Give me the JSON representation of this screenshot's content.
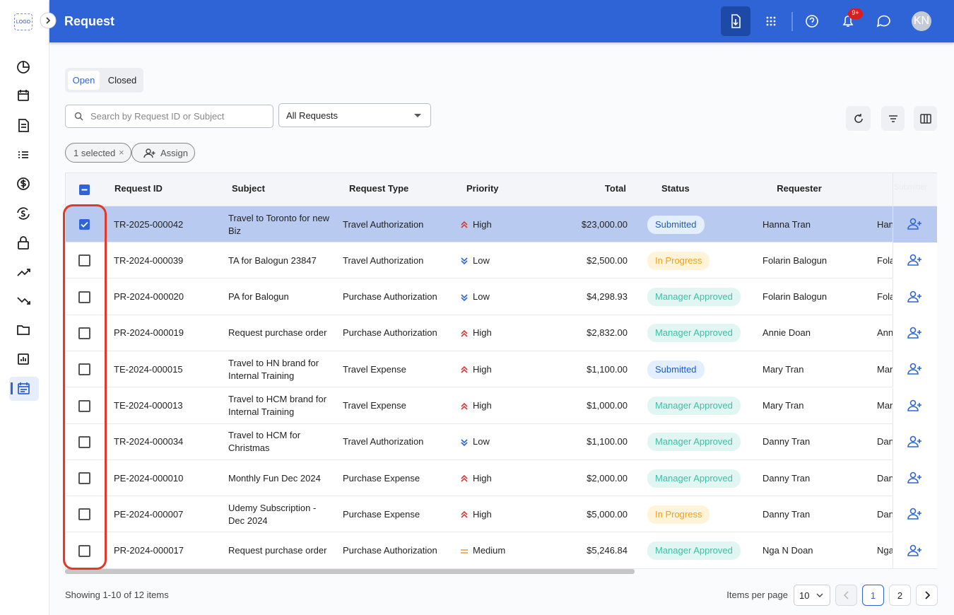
{
  "app": {
    "logo": "LOGO",
    "title": "Request",
    "notification_badge": "9+",
    "avatar": "KN"
  },
  "tabs": [
    "Open",
    "Closed"
  ],
  "filters": {
    "search_placeholder": "Search by Request ID or Subject",
    "dropdown": "All Requests"
  },
  "selection": {
    "selected": "1 selected",
    "assign": "Assign"
  },
  "table": {
    "columns": [
      "Request ID",
      "Subject",
      "Request Type",
      "Priority",
      "Total",
      "Status",
      "Requester",
      "Submitter"
    ],
    "checked": [
      true,
      false,
      false,
      false,
      false,
      false,
      false,
      false,
      false,
      false
    ],
    "rows": [
      [
        "TR-2025-000042",
        "Travel to Toronto for new Biz",
        "Travel Authorization",
        "High",
        "$23,000.00",
        "Submitted",
        "Hanna Tran",
        "Han"
      ],
      [
        "TR-2024-000039",
        "TA for Balogun 23847",
        "Travel Authorization",
        "Low",
        "$2,500.00",
        "In Progress",
        "Folarin Balogun",
        "Fola"
      ],
      [
        "PR-2024-000020",
        "PA for Balogun",
        "Purchase Authorization",
        "Low",
        "$4,298.93",
        "Manager Approved",
        "Folarin Balogun",
        "Fola"
      ],
      [
        "PR-2024-000019",
        "Request purchase order",
        "Purchase Authorization",
        "High",
        "$2,832.00",
        "Manager Approved",
        "Annie Doan",
        "Anni"
      ],
      [
        "TE-2024-000015",
        "Travel to HN brand for Internal Training",
        "Travel Expense",
        "High",
        "$1,100.00",
        "Submitted",
        "Mary Tran",
        "Mary"
      ],
      [
        "TE-2024-000013",
        "Travel to HCM brand for Internal Training",
        "Travel Expense",
        "High",
        "$1,000.00",
        "Manager Approved",
        "Mary Tran",
        "Mary"
      ],
      [
        "TR-2024-000034",
        "Travel to HCM for Christmas",
        "Travel Authorization",
        "Low",
        "$1,100.00",
        "Manager Approved",
        "Danny Tran",
        "Dann"
      ],
      [
        "PE-2024-000010",
        "Monthly Fun Dec 2024",
        "Purchase Expense",
        "High",
        "$2,000.00",
        "Manager Approved",
        "Danny Tran",
        "Dann"
      ],
      [
        "PE-2024-000007",
        "Udemy Subscription - Dec 2024",
        "Purchase Expense",
        "High",
        "$5,000.00",
        "In Progress",
        "Danny Tran",
        "Dann"
      ],
      [
        "PR-2024-000017",
        "Request purchase order",
        "Purchase Authorization",
        "Medium",
        "$5,246.84",
        "Manager Approved",
        "Nga N Doan",
        "Nga"
      ]
    ]
  },
  "footer": {
    "summary": "Showing 1-10 of 12 items",
    "items_per_page_label": "Items per page",
    "items_per_page": "10",
    "pages": [
      "1",
      "2"
    ]
  }
}
